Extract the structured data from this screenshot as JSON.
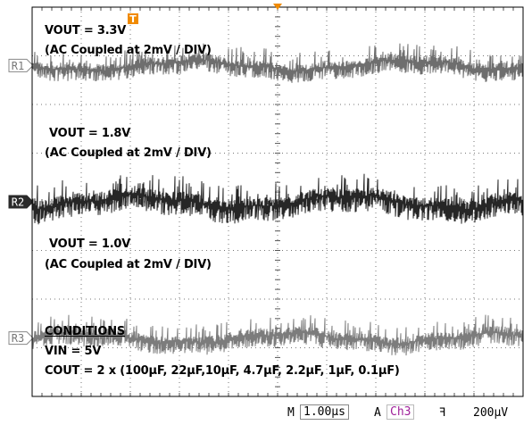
{
  "annotations": [
    {
      "id": "vout1",
      "text": "VOUT = 3.3V"
    },
    {
      "id": "ac1",
      "text": "(AC Coupled at 2mV / DIV)"
    },
    {
      "id": "vout2",
      "text": "VOUT = 1.8V"
    },
    {
      "id": "ac2",
      "text": "(AC Coupled at 2mV / DIV)"
    },
    {
      "id": "vout3",
      "text": "VOUT = 1.0V"
    },
    {
      "id": "ac3",
      "text": "(AC Coupled at 2mV / DIV)"
    },
    {
      "id": "cond",
      "text": "CONDITIONS"
    },
    {
      "id": "vin",
      "text": "VIN = 5V"
    },
    {
      "id": "cout",
      "text": "COUT = 2 x (100µF, 22µF,10µF, 4.7µF, 2.2µF, 1µF, 0.1µF)"
    }
  ],
  "status": {
    "m": "M",
    "timebase": "1.00µs",
    "a": "A",
    "channel": "Ch3",
    "edge": "ꟻ",
    "level": "200µV"
  },
  "chart_data": {
    "type": "line",
    "title": "",
    "xlabel": "",
    "ylabel": "",
    "grid": true,
    "x_divisions": 10,
    "y_divisions": 8,
    "time_per_div": "1.00µs",
    "volts_per_div": "2mV",
    "trigger_marker": "T",
    "series": [
      {
        "name": "R1",
        "reference_label": "R1",
        "vout": "VOUT = 3.3V",
        "color": "#6e6e6e",
        "ref_level_div": -2.8,
        "peak_to_peak_div": 0.55
      },
      {
        "name": "R2",
        "reference_label": "R2",
        "vout": "VOUT = 1.8V",
        "color": "#262626",
        "ref_level_div": 0.0,
        "peak_to_peak_div": 0.7
      },
      {
        "name": "R3",
        "reference_label": "R3",
        "vout": "VOUT = 1.0V",
        "color": "#7c7c7c",
        "ref_level_div": 2.8,
        "peak_to_peak_div": 0.55
      }
    ]
  }
}
